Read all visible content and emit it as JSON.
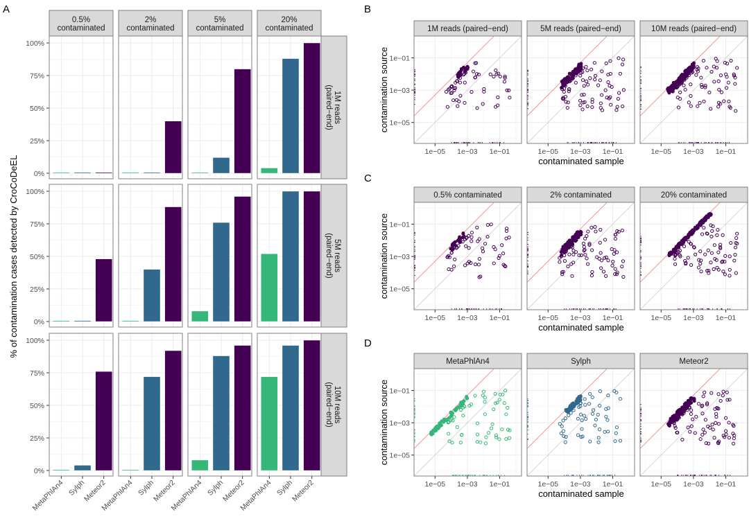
{
  "colors": {
    "MetaPhlAn4": "#35B779",
    "Sylph": "#31688E",
    "Meteor2": "#440154",
    "strip_bg": "#D9D9D9",
    "grid": "#EBEBEB",
    "red_line": "#F08080",
    "identity_line": "#D0D0D0"
  },
  "panel_labels": [
    "A",
    "B",
    "C",
    "D"
  ],
  "chart_data": [
    {
      "id": "A",
      "type": "bar",
      "title": "",
      "ylabel": "% of contamination cases detected by CroCoDeEL",
      "xlabel": "",
      "ylim": [
        0,
        100
      ],
      "yticks": [
        "0%",
        "25%",
        "50%",
        "75%",
        "100%"
      ],
      "ytick_values": [
        0,
        25,
        50,
        75,
        100
      ],
      "categories": [
        "MetaPhlAn4",
        "Sylph",
        "Meteor2"
      ],
      "col_facets": [
        "0.5%\ncontaminated",
        "2%\ncontaminated",
        "5%\ncontaminated",
        "20%\ncontaminated"
      ],
      "row_facets": [
        "1M reads\n(paired−end)",
        "5M reads\n(paired−end)",
        "10M reads\n(paired−end)"
      ],
      "values": [
        [
          [
            0,
            0,
            0
          ],
          [
            0,
            0,
            40
          ],
          [
            0,
            12,
            80
          ],
          [
            4,
            88,
            100
          ]
        ],
        [
          [
            0,
            0,
            48
          ],
          [
            0,
            40,
            88
          ],
          [
            8,
            76,
            96
          ],
          [
            52,
            100,
            100
          ]
        ],
        [
          [
            0,
            4,
            76
          ],
          [
            0,
            72,
            92
          ],
          [
            8,
            88,
            96
          ],
          [
            72,
            96,
            100
          ]
        ]
      ],
      "grid": true
    },
    {
      "id": "B",
      "type": "scatter",
      "xlabel": "contaminated sample",
      "ylabel": "contamination source",
      "scale": "log10",
      "xlim_log10": [
        -6.3,
        0.35
      ],
      "ylim_log10": [
        -6.3,
        0.35
      ],
      "ticks": [
        "1e−05",
        "1e−03",
        "1e−01"
      ],
      "tick_values_log10": [
        -5,
        -3,
        -1
      ],
      "red_line_offset_log10": 1.7,
      "facets": [
        "1M reads (paired−end)",
        "5M reads (paired−end)",
        "10M reads (paired−end)"
      ],
      "panels": [
        {
          "tool": "Meteor2",
          "filled_range": [
            -3.6,
            -2.95
          ],
          "filled_n": 22,
          "spread": 0.9
        },
        {
          "tool": "Meteor2",
          "filled_range": [
            -4.2,
            -2.95
          ],
          "filled_n": 70,
          "spread": 1.0
        },
        {
          "tool": "Meteor2",
          "filled_range": [
            -4.6,
            -2.95
          ],
          "filled_n": 110,
          "spread": 1.0
        }
      ]
    },
    {
      "id": "C",
      "type": "scatter",
      "xlabel": "contaminated sample",
      "ylabel": "contamination source",
      "scale": "log10",
      "xlim_log10": [
        -6.3,
        0.35
      ],
      "ylim_log10": [
        -6.3,
        0.35
      ],
      "ticks": [
        "1e−05",
        "1e−03",
        "1e−01"
      ],
      "tick_values_log10": [
        -5,
        -3,
        -1
      ],
      "red_line_offset_log10": 1.7,
      "facets": [
        "0.5% contaminated",
        "2% contaminated",
        "20% contaminated"
      ],
      "panels": [
        {
          "tool": "Meteor2",
          "filled_range": [
            -4.1,
            -3.2
          ],
          "filled_n": 24,
          "spread": 0.9
        },
        {
          "tool": "Meteor2",
          "filled_range": [
            -4.2,
            -2.95
          ],
          "filled_n": 70,
          "spread": 1.0
        },
        {
          "tool": "Meteor2",
          "filled_range": [
            -4.5,
            -1.9
          ],
          "filled_n": 150,
          "spread": 0.5
        }
      ]
    },
    {
      "id": "D",
      "type": "scatter",
      "xlabel": "contaminated sample",
      "ylabel": "contamination source",
      "scale": "log10",
      "xlim_log10": [
        -6.3,
        0.35
      ],
      "ylim_log10": [
        -6.3,
        0.35
      ],
      "ticks": [
        "1e−05",
        "1e−03",
        "1e−01"
      ],
      "tick_values_log10": [
        -5,
        -3,
        -1
      ],
      "red_line_offset_log10": 1.7,
      "facets": [
        "MetaPhlAn4",
        "Sylph",
        "Meteor2"
      ],
      "panels": [
        {
          "tool": "MetaPhlAn4",
          "filled_range": [
            -5.3,
            -2.9
          ],
          "filled_n": 60,
          "spread": 0.6
        },
        {
          "tool": "Sylph",
          "filled_range": [
            -3.9,
            -2.95
          ],
          "filled_n": 55,
          "spread": 0.7
        },
        {
          "tool": "Meteor2",
          "filled_range": [
            -4.6,
            -2.95
          ],
          "filled_n": 120,
          "spread": 1.0
        }
      ]
    }
  ]
}
